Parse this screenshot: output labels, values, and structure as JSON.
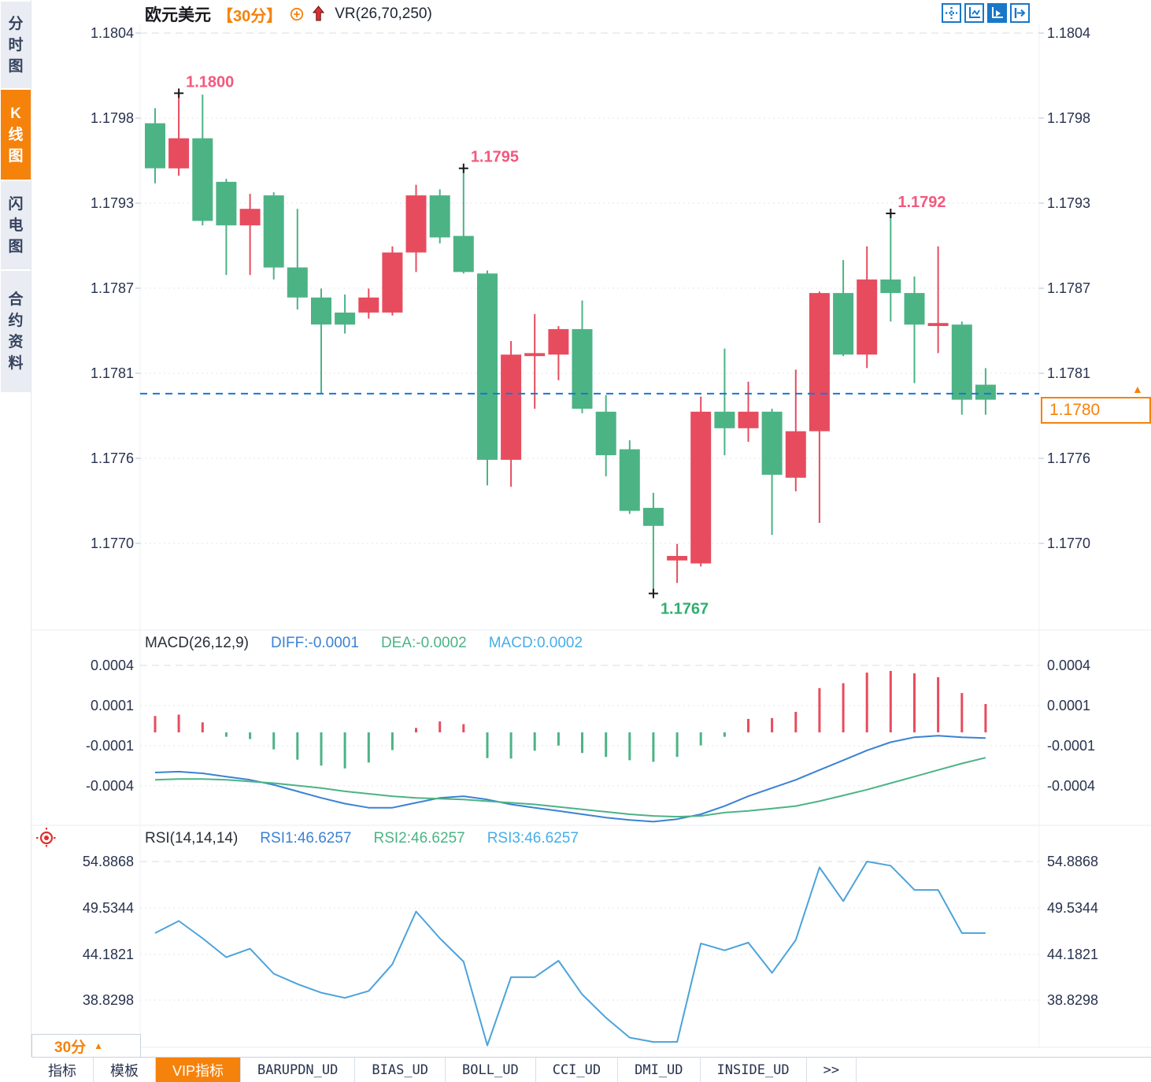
{
  "header": {
    "symbol": "欧元美元",
    "period_tag": "【30分】",
    "overlay_label": "VR(26,70,250)"
  },
  "toolbar": {
    "icons": [
      {
        "name": "pan-crosshair-icon",
        "active": false
      },
      {
        "name": "axis-scale-icon",
        "active": false
      },
      {
        "name": "auto-scroll-icon",
        "active": true
      },
      {
        "name": "jump-to-latest-icon",
        "active": false
      }
    ]
  },
  "sidebar": {
    "tabs": [
      {
        "label": "分时图",
        "active": false
      },
      {
        "label": "K线图",
        "active": true
      },
      {
        "label": "闪电图",
        "active": false
      },
      {
        "label": "合约资料",
        "active": false
      }
    ]
  },
  "chart_data": {
    "type": "candlestick",
    "symbol": "欧元美元",
    "interval": "30分",
    "price_axis_ticks": [
      "1.1804",
      "1.1798",
      "1.1793",
      "1.1787",
      "1.1781",
      "1.1776",
      "1.1770"
    ],
    "candles": [
      {
        "o": 1.1798,
        "h": 1.1799,
        "l": 1.1794,
        "c": 1.1795
      },
      {
        "o": 1.1795,
        "h": 1.18,
        "l": 1.17945,
        "c": 1.1797
      },
      {
        "o": 1.1797,
        "h": 1.17999,
        "l": 1.17912,
        "c": 1.17915
      },
      {
        "o": 1.17941,
        "h": 1.17943,
        "l": 1.17879,
        "c": 1.17912
      },
      {
        "o": 1.17912,
        "h": 1.17933,
        "l": 1.17879,
        "c": 1.17923
      },
      {
        "o": 1.17932,
        "h": 1.17934,
        "l": 1.17876,
        "c": 1.17884
      },
      {
        "o": 1.17884,
        "h": 1.17923,
        "l": 1.17856,
        "c": 1.17864
      },
      {
        "o": 1.17864,
        "h": 1.1787,
        "l": 1.178,
        "c": 1.17846
      },
      {
        "o": 1.17854,
        "h": 1.17866,
        "l": 1.1784,
        "c": 1.17846
      },
      {
        "o": 1.17854,
        "h": 1.1787,
        "l": 1.1785,
        "c": 1.17864
      },
      {
        "o": 1.17854,
        "h": 1.17898,
        "l": 1.17852,
        "c": 1.17894
      },
      {
        "o": 1.17894,
        "h": 1.17939,
        "l": 1.17881,
        "c": 1.17932
      },
      {
        "o": 1.17932,
        "h": 1.17936,
        "l": 1.179,
        "c": 1.17904
      },
      {
        "o": 1.17905,
        "h": 1.1795,
        "l": 1.1788,
        "c": 1.17881
      },
      {
        "o": 1.1788,
        "h": 1.17882,
        "l": 1.17739,
        "c": 1.17756
      },
      {
        "o": 1.17756,
        "h": 1.17835,
        "l": 1.17738,
        "c": 1.17826
      },
      {
        "o": 1.17825,
        "h": 1.17853,
        "l": 1.1779,
        "c": 1.17827
      },
      {
        "o": 1.17826,
        "h": 1.17845,
        "l": 1.17809,
        "c": 1.17843
      },
      {
        "o": 1.17843,
        "h": 1.17862,
        "l": 1.17787,
        "c": 1.1779
      },
      {
        "o": 1.17788,
        "h": 1.17799,
        "l": 1.17745,
        "c": 1.17759
      },
      {
        "o": 1.17763,
        "h": 1.17769,
        "l": 1.1772,
        "c": 1.17722
      },
      {
        "o": 1.17724,
        "h": 1.17734,
        "l": 1.17667,
        "c": 1.17712
      },
      {
        "o": 1.17689,
        "h": 1.177,
        "l": 1.17674,
        "c": 1.17692
      },
      {
        "o": 1.17687,
        "h": 1.17798,
        "l": 1.17685,
        "c": 1.17788
      },
      {
        "o": 1.17788,
        "h": 1.1783,
        "l": 1.17759,
        "c": 1.17777
      },
      {
        "o": 1.17777,
        "h": 1.17808,
        "l": 1.17768,
        "c": 1.17788
      },
      {
        "o": 1.17788,
        "h": 1.1779,
        "l": 1.17706,
        "c": 1.17746
      },
      {
        "o": 1.17744,
        "h": 1.17816,
        "l": 1.17735,
        "c": 1.17775
      },
      {
        "o": 1.17775,
        "h": 1.17868,
        "l": 1.17714,
        "c": 1.17867
      },
      {
        "o": 1.17867,
        "h": 1.17889,
        "l": 1.17825,
        "c": 1.17826
      },
      {
        "o": 1.17826,
        "h": 1.17898,
        "l": 1.17817,
        "c": 1.17876
      },
      {
        "o": 1.17876,
        "h": 1.1792,
        "l": 1.17848,
        "c": 1.17867
      },
      {
        "o": 1.17867,
        "h": 1.17878,
        "l": 1.17807,
        "c": 1.17846
      },
      {
        "o": 1.17845,
        "h": 1.17898,
        "l": 1.17827,
        "c": 1.17847
      },
      {
        "o": 1.17846,
        "h": 1.17848,
        "l": 1.17786,
        "c": 1.17796
      },
      {
        "o": 1.17806,
        "h": 1.17817,
        "l": 1.17786,
        "c": 1.17796
      }
    ],
    "annotations": [
      {
        "label": "1.1800",
        "candle_index": 1,
        "kind": "high"
      },
      {
        "label": "1.1795",
        "candle_index": 13,
        "kind": "high"
      },
      {
        "label": "1.1792",
        "candle_index": 31,
        "kind": "high"
      },
      {
        "label": "1.1767",
        "candle_index": 21,
        "kind": "low"
      }
    ],
    "last_price_line": {
      "value": "1.1780",
      "price": 1.178
    },
    "macd": {
      "title": "MACD(26,12,9)",
      "diff_label": "DIFF:-0.0001",
      "dea_label": "DEA:-0.0002",
      "macd_label": "MACD:0.0002",
      "axis_ticks": [
        "0.0004",
        "0.0001",
        "-0.0001",
        "-0.0004"
      ],
      "histogram_1e4": [
        1.0,
        1.08,
        0.61,
        -0.27,
        -0.41,
        -1.04,
        -1.67,
        -2.03,
        -2.2,
        -1.84,
        -1.08,
        0.27,
        0.67,
        0.5,
        -1.57,
        -1.6,
        -1.12,
        -0.81,
        -1.26,
        -1.5,
        -1.7,
        -1.8,
        -1.5,
        -0.8,
        -0.27,
        0.82,
        0.87,
        1.25,
        2.7,
        3.0,
        3.65,
        3.75,
        3.6,
        3.37,
        2.4,
        1.73
      ],
      "diff_1e4": [
        -2.45,
        -2.4,
        -2.5,
        -2.7,
        -2.9,
        -3.2,
        -3.6,
        -4.0,
        -4.35,
        -4.6,
        -4.6,
        -4.3,
        -4.0,
        -3.9,
        -4.1,
        -4.4,
        -4.6,
        -4.8,
        -5.0,
        -5.2,
        -5.35,
        -5.45,
        -5.3,
        -5.0,
        -4.5,
        -3.9,
        -3.4,
        -2.9,
        -2.3,
        -1.7,
        -1.1,
        -0.6,
        -0.3,
        -0.2,
        -0.3,
        -0.35
      ],
      "dea_1e4": [
        -2.9,
        -2.85,
        -2.85,
        -2.9,
        -3.0,
        -3.1,
        -3.25,
        -3.4,
        -3.6,
        -3.75,
        -3.9,
        -4.0,
        -4.05,
        -4.1,
        -4.2,
        -4.3,
        -4.4,
        -4.55,
        -4.7,
        -4.85,
        -5.0,
        -5.1,
        -5.15,
        -5.1,
        -4.9,
        -4.8,
        -4.65,
        -4.5,
        -4.2,
        -3.85,
        -3.5,
        -3.1,
        -2.7,
        -2.3,
        -1.9,
        -1.55
      ]
    },
    "rsi": {
      "title": "RSI(14,14,14)",
      "rsi1_label": "RSI1:46.6257",
      "rsi2_label": "RSI2:46.6257",
      "rsi3_label": "RSI3:46.6257",
      "axis_ticks": [
        "54.8868",
        "49.5344",
        "44.1821",
        "38.8298"
      ],
      "values": [
        46.6,
        48.0,
        46.0,
        43.8,
        44.8,
        41.9,
        40.7,
        39.7,
        39.1,
        39.9,
        43.0,
        49.1,
        46.0,
        43.3,
        33.6,
        41.5,
        41.5,
        43.4,
        39.5,
        36.8,
        34.5,
        34.0,
        34.0,
        45.4,
        44.6,
        45.5,
        42.0,
        45.8,
        54.2,
        50.3,
        54.89,
        54.4,
        51.6,
        51.6,
        46.6,
        46.6
      ]
    }
  },
  "period_selector": {
    "label": "30分",
    "arrow": "▲"
  },
  "price_marker_arrow": "▲",
  "bottom_tabs": {
    "tabs": [
      {
        "label": "指标",
        "active": false,
        "mono": false
      },
      {
        "label": "模板",
        "active": false,
        "mono": false
      },
      {
        "label": "VIP指标",
        "active": true,
        "mono": false
      },
      {
        "label": "BARUPDN_UD",
        "active": false,
        "mono": true
      },
      {
        "label": "BIAS_UD",
        "active": false,
        "mono": true
      },
      {
        "label": "BOLL_UD",
        "active": false,
        "mono": true
      },
      {
        "label": "CCI_UD",
        "active": false,
        "mono": true
      },
      {
        "label": "DMI_UD",
        "active": false,
        "mono": true
      },
      {
        "label": "INSIDE_UD",
        "active": false,
        "mono": true
      },
      {
        "label": ">>",
        "active": false,
        "mono": true
      }
    ]
  },
  "colors": {
    "up_candle": "#e74c5e",
    "down_candle": "#4cb385",
    "accent_orange": "#f5820b",
    "diff_blue": "#3b82d4",
    "dea_green": "#4cb385",
    "macd_cyan": "#45aee8",
    "rsi_line": "#4ba3db",
    "last_price_blue": "#1677d9",
    "annotation_pink": "#f4587e",
    "annotation_green": "#2fae70",
    "axis_text": "#28324e",
    "toolbar_blue": "#1877c9"
  }
}
